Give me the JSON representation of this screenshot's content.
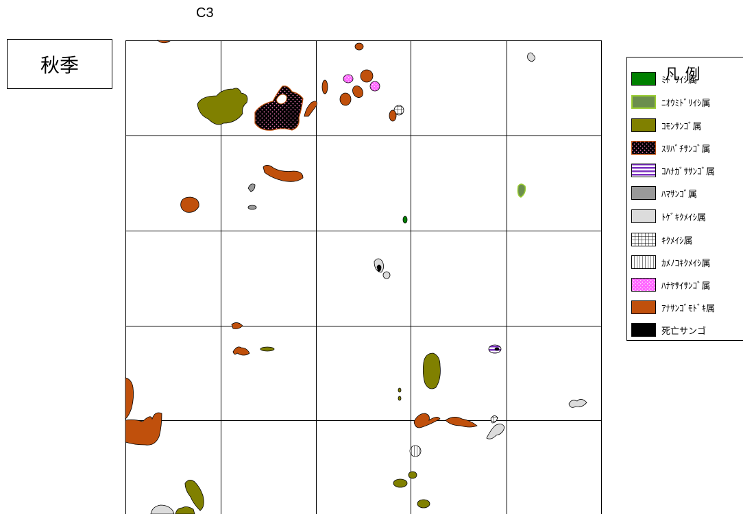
{
  "map": {
    "title": "C3",
    "season": "秋季"
  },
  "legend": {
    "title": "凡例",
    "items": [
      {
        "key": "midoriishi",
        "label": "ﾐﾄﾞﾘｲｼ属",
        "color": "#008000",
        "pattern": "solid"
      },
      {
        "key": "niomidoriishi",
        "label": "ﾆｵｳﾐﾄﾞﾘｲｼ属",
        "color": "#6b8e4e",
        "pattern": "solid-light-border"
      },
      {
        "key": "komonsango",
        "label": "ｺﾓﾝｻﾝｺﾞ属",
        "color": "#808000",
        "pattern": "solid"
      },
      {
        "key": "suribachisango",
        "label": "ｽﾘﾊﾞﾁｻﾝｺﾞ属",
        "color": "#000000",
        "pattern": "dots-on-black"
      },
      {
        "key": "kohanagasasango",
        "label": "ｺﾊﾅｶﾞｻｻﾝｺﾞ属",
        "color": "#7b2fbf",
        "pattern": "h-stripes"
      },
      {
        "key": "hamasango",
        "label": "ﾊﾏｻﾝｺﾞ属",
        "color": "#999999",
        "pattern": "solid"
      },
      {
        "key": "togekikumeishi",
        "label": "ﾄｹﾞｷｸﾒｲｼ属",
        "color": "#dcdcdc",
        "pattern": "solid"
      },
      {
        "key": "kikumeishi",
        "label": "ｷｸﾒｲｼ属",
        "color": "#000000",
        "pattern": "grid"
      },
      {
        "key": "kamenokokikumeishi",
        "label": "ｶﾒﾉｺｷｸﾒｲｼ属",
        "color": "#000000",
        "pattern": "v-stripes"
      },
      {
        "key": "hanayasaisango",
        "label": "ﾊﾅﾔｻｲｻﾝｺﾞ属",
        "color": "#ff66ff",
        "pattern": "dots-on-pink"
      },
      {
        "key": "anasangomodoki",
        "label": "ｱﾅｻﾝｺﾞﾓﾄﾞｷ属",
        "color": "#c0500c",
        "pattern": "solid"
      },
      {
        "key": "shibousango",
        "label": "死亡サンゴ",
        "color": "#000000",
        "pattern": "solid"
      }
    ]
  }
}
